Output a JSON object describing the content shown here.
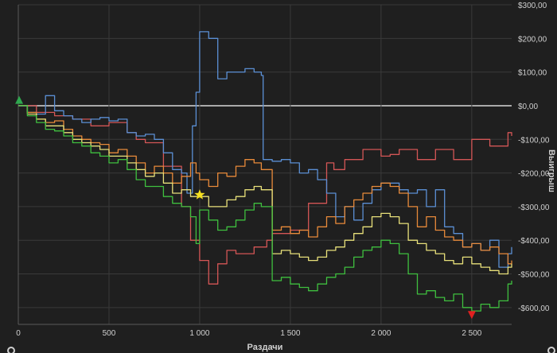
{
  "chart_data": {
    "type": "line",
    "xlabel": "Раздачи",
    "ylabel": "Выигрыш",
    "xlim": [
      0,
      2720
    ],
    "ylim": [
      -650,
      300
    ],
    "x_ticks": [
      0,
      500,
      1000,
      1500,
      2000,
      2500
    ],
    "x_tick_labels": [
      "0",
      "500",
      "1 000",
      "1 500",
      "2 000",
      "2 500"
    ],
    "y_ticks": [
      300,
      200,
      100,
      0,
      -100,
      -200,
      -300,
      -400,
      -500,
      -600
    ],
    "y_tick_labels": [
      "$300,00",
      "$200,00",
      "$100,00",
      "$0,00",
      "-$100,00",
      "-$200,00",
      "-$300,00",
      "-$400,00",
      "-$500,00",
      "-$600,00"
    ],
    "grid": true,
    "background": "#1f1f1f",
    "grid_color": "#3a3a3a",
    "zero_line_color": "#d8d8d8",
    "series": [
      {
        "color": "#d45656",
        "x": [
          0,
          100,
          200,
          300,
          400,
          500,
          600,
          650,
          700,
          800,
          900,
          950,
          1000,
          1050,
          1100,
          1150,
          1200,
          1300,
          1370,
          1400,
          1500,
          1600,
          1700,
          1740,
          1800,
          1900,
          2000,
          2050,
          2100,
          2200,
          2300,
          2400,
          2500,
          2600,
          2700,
          2720
        ],
        "y": [
          0,
          -20,
          -30,
          -40,
          -60,
          -50,
          -80,
          -100,
          -110,
          -180,
          -300,
          -400,
          -460,
          -530,
          -470,
          -430,
          -440,
          -420,
          -400,
          -380,
          -370,
          -290,
          -170,
          -190,
          -160,
          -130,
          -150,
          -145,
          -130,
          -160,
          -130,
          -160,
          -100,
          -120,
          -80,
          -90
        ]
      },
      {
        "color": "#5b8fd4",
        "x": [
          0,
          50,
          100,
          150,
          200,
          250,
          300,
          350,
          400,
          450,
          500,
          550,
          600,
          650,
          700,
          750,
          800,
          850,
          900,
          930,
          960,
          980,
          1000,
          1050,
          1100,
          1150,
          1200,
          1250,
          1300,
          1340,
          1350,
          1400,
          1450,
          1500,
          1550,
          1600,
          1650,
          1700,
          1750,
          1800,
          1850,
          1900,
          1950,
          2000,
          2050,
          2100,
          2150,
          2200,
          2250,
          2300,
          2350,
          2400,
          2450,
          2500,
          2550,
          2600,
          2650,
          2700,
          2720
        ],
        "y": [
          0,
          -20,
          -25,
          30,
          -15,
          -30,
          -40,
          -50,
          -40,
          -35,
          -45,
          -40,
          -80,
          -90,
          -85,
          -100,
          -140,
          -190,
          -200,
          -260,
          -60,
          40,
          220,
          200,
          80,
          100,
          100,
          110,
          100,
          90,
          -160,
          -165,
          -160,
          -170,
          -200,
          -190,
          -220,
          -260,
          -330,
          -300,
          -340,
          -290,
          -250,
          -230,
          -230,
          -250,
          -260,
          -250,
          -300,
          -250,
          -360,
          -380,
          -420,
          -410,
          -430,
          -400,
          -480,
          -440,
          -420
        ]
      },
      {
        "color": "#e88a3a",
        "x": [
          0,
          50,
          100,
          150,
          200,
          250,
          300,
          350,
          400,
          450,
          500,
          550,
          600,
          650,
          700,
          750,
          800,
          850,
          900,
          950,
          980,
          1000,
          1050,
          1100,
          1150,
          1200,
          1250,
          1300,
          1340,
          1400,
          1450,
          1500,
          1550,
          1600,
          1650,
          1700,
          1750,
          1800,
          1850,
          1900,
          1950,
          2000,
          2050,
          2100,
          2150,
          2200,
          2250,
          2300,
          2350,
          2400,
          2450,
          2500,
          2550,
          2600,
          2650,
          2700,
          2720
        ],
        "y": [
          0,
          -20,
          -40,
          -50,
          -45,
          -70,
          -90,
          -100,
          -110,
          -115,
          -140,
          -130,
          -150,
          -170,
          -200,
          -180,
          -200,
          -230,
          -210,
          -170,
          -200,
          -220,
          -240,
          -200,
          -210,
          -180,
          -160,
          -170,
          -190,
          -370,
          -360,
          -380,
          -370,
          -390,
          -360,
          -330,
          -350,
          -300,
          -280,
          -260,
          -240,
          -230,
          -240,
          -260,
          -300,
          -360,
          -330,
          -370,
          -390,
          -400,
          -420,
          -410,
          -430,
          -420,
          -440,
          -470,
          -460
        ]
      },
      {
        "color": "#e8e07a",
        "x": [
          0,
          50,
          100,
          150,
          200,
          250,
          300,
          350,
          400,
          450,
          500,
          550,
          600,
          650,
          700,
          750,
          800,
          850,
          900,
          950,
          1000,
          1050,
          1100,
          1150,
          1200,
          1250,
          1300,
          1340,
          1400,
          1450,
          1500,
          1550,
          1600,
          1650,
          1700,
          1750,
          1800,
          1850,
          1900,
          1950,
          2000,
          2050,
          2100,
          2150,
          2200,
          2250,
          2300,
          2350,
          2400,
          2450,
          2500,
          2550,
          2600,
          2650,
          2700,
          2720
        ],
        "y": [
          0,
          -25,
          -40,
          -60,
          -60,
          -80,
          -100,
          -110,
          -120,
          -130,
          -150,
          -150,
          -170,
          -190,
          -210,
          -200,
          -230,
          -260,
          -250,
          -270,
          -270,
          -300,
          -300,
          -280,
          -270,
          -250,
          -240,
          -250,
          -440,
          -430,
          -440,
          -450,
          -460,
          -450,
          -430,
          -420,
          -400,
          -380,
          -360,
          -330,
          -320,
          -330,
          -350,
          -400,
          -410,
          -430,
          -440,
          -460,
          -470,
          -450,
          -470,
          -480,
          -490,
          -500,
          -480,
          -470
        ]
      },
      {
        "color": "#3fbf3f",
        "x": [
          0,
          50,
          100,
          150,
          200,
          250,
          300,
          350,
          400,
          450,
          500,
          550,
          600,
          650,
          700,
          750,
          800,
          850,
          900,
          950,
          980,
          1000,
          1050,
          1100,
          1150,
          1200,
          1250,
          1300,
          1340,
          1400,
          1450,
          1500,
          1550,
          1600,
          1650,
          1700,
          1750,
          1800,
          1850,
          1900,
          1950,
          2000,
          2050,
          2100,
          2150,
          2200,
          2250,
          2300,
          2350,
          2400,
          2450,
          2500,
          2550,
          2600,
          2650,
          2700,
          2720
        ],
        "y": [
          0,
          -30,
          -50,
          -70,
          -75,
          -90,
          -110,
          -120,
          -140,
          -150,
          -170,
          -160,
          -190,
          -220,
          -240,
          -240,
          -270,
          -290,
          -300,
          -330,
          -410,
          -310,
          -340,
          -370,
          -360,
          -340,
          -310,
          -290,
          -300,
          -520,
          -510,
          -530,
          -540,
          -550,
          -530,
          -510,
          -500,
          -480,
          -450,
          -430,
          -420,
          -400,
          -410,
          -440,
          -500,
          -560,
          -550,
          -570,
          -580,
          -560,
          -600,
          -610,
          -590,
          -600,
          -580,
          -530,
          -520
        ]
      }
    ],
    "markers": [
      {
        "type": "triangle-up",
        "color": "#2fa84f",
        "x": 5,
        "y": 15
      },
      {
        "type": "star",
        "color": "#f5e020",
        "x": 1000,
        "y": -265
      },
      {
        "type": "triangle-down",
        "color": "#e02020",
        "x": 2500,
        "y": -620
      }
    ]
  }
}
